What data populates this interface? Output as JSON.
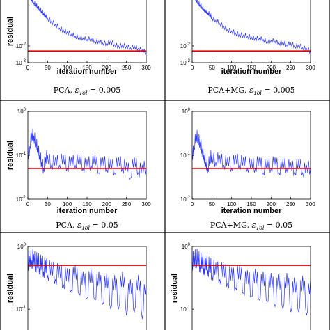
{
  "colors": {
    "series": "#2a35ff",
    "tolerance": "#e00000",
    "axis": "#000000",
    "background": "#ffffff",
    "divider": "#000000"
  },
  "chart_data": [
    {
      "panel": "top-left",
      "type": "line",
      "title": "",
      "xlabel": "iteration number",
      "ylabel": "residual",
      "xlim": [
        0,
        300
      ],
      "ylim": [
        0.001,
        10
      ],
      "yscale": "log",
      "xticks": [
        "0",
        "50",
        "100",
        "150",
        "200",
        "250",
        "300"
      ],
      "yticks": [
        {
          "value": 10,
          "base": "10",
          "exp": "1"
        },
        {
          "value": 0.01,
          "base": "10",
          "exp": "-2"
        },
        {
          "value": 0.001,
          "base": "10",
          "exp": "-3"
        }
      ],
      "tolerance": 0.005,
      "series": [
        {
          "x": [
            0,
            5,
            10,
            15,
            20,
            25,
            30,
            35,
            40,
            45,
            50,
            60,
            70,
            80,
            90,
            100,
            110,
            120,
            130,
            140,
            150,
            160,
            170,
            180,
            190,
            200,
            210,
            220,
            230,
            240,
            250,
            260,
            270,
            280,
            290,
            300
          ],
          "values": [
            15,
            10,
            6,
            4,
            3,
            2.2,
            1.6,
            1.2,
            0.9,
            0.7,
            0.45,
            0.3,
            0.2,
            0.12,
            0.09,
            0.07,
            0.05,
            0.04,
            0.035,
            0.03,
            0.025,
            0.03,
            0.02,
            0.02,
            0.015,
            0.015,
            0.02,
            0.012,
            0.01,
            0.012,
            0.01,
            0.008,
            0.01,
            0.007,
            0.006,
            0.004
          ]
        }
      ]
    },
    {
      "panel": "top-right",
      "type": "line",
      "title": "",
      "xlabel": "iteration number",
      "ylabel": "",
      "xlim": [
        0,
        300
      ],
      "ylim": [
        0.001,
        10
      ],
      "yscale": "log",
      "xticks": [
        "0",
        "50",
        "100",
        "150",
        "200",
        "250",
        "300"
      ],
      "yticks": [
        {
          "value": 10,
          "base": "10",
          "exp": "1"
        },
        {
          "value": 0.01,
          "base": "10",
          "exp": "-2"
        },
        {
          "value": 0.001,
          "base": "10",
          "exp": "-3"
        }
      ],
      "tolerance": 0.005,
      "series": [
        {
          "x": [
            0,
            5,
            10,
            15,
            20,
            25,
            30,
            35,
            40,
            45,
            50,
            60,
            70,
            80,
            90,
            100,
            110,
            120,
            130,
            140,
            150,
            160,
            170,
            180,
            190,
            200,
            210,
            220,
            230,
            240,
            250,
            260,
            270,
            280,
            290,
            300
          ],
          "values": [
            15,
            10,
            6,
            4,
            3,
            2.2,
            1.6,
            1.3,
            1.0,
            0.8,
            0.5,
            0.35,
            0.22,
            0.15,
            0.1,
            0.08,
            0.06,
            0.05,
            0.045,
            0.04,
            0.035,
            0.03,
            0.03,
            0.025,
            0.02,
            0.022,
            0.02,
            0.015,
            0.018,
            0.012,
            0.015,
            0.01,
            0.012,
            0.008,
            0.007,
            0.005
          ]
        }
      ]
    },
    {
      "panel": "middle-left",
      "type": "line",
      "title": "PCA, ε_Tol = 0.005",
      "xlabel": "iteration number",
      "ylabel": "residual",
      "xlim": [
        0,
        300
      ],
      "ylim": [
        0.01,
        1
      ],
      "yscale": "log",
      "xticks": [
        "0",
        "50",
        "100",
        "150",
        "200",
        "250",
        "300"
      ],
      "yticks": [
        {
          "value": 1,
          "base": "10",
          "exp": "0"
        },
        {
          "value": 0.1,
          "base": "10",
          "exp": "-1"
        },
        {
          "value": 0.01,
          "base": "10",
          "exp": "-2"
        }
      ],
      "tolerance": 0.05,
      "series": [
        {
          "x": [
            0,
            5,
            10,
            15,
            20,
            25,
            30,
            35,
            40,
            45,
            50,
            60,
            70,
            80,
            90,
            100,
            110,
            120,
            130,
            140,
            150,
            160,
            170,
            180,
            190,
            200,
            210,
            220,
            230,
            240,
            250,
            260,
            270,
            280,
            290,
            300
          ],
          "values": [
            0.1,
            0.16,
            0.32,
            0.28,
            0.2,
            0.15,
            0.1,
            0.07,
            0.05,
            0.09,
            0.1,
            0.06,
            0.09,
            0.06,
            0.1,
            0.05,
            0.09,
            0.06,
            0.1,
            0.05,
            0.08,
            0.06,
            0.1,
            0.04,
            0.09,
            0.05,
            0.08,
            0.04,
            0.09,
            0.05,
            0.07,
            0.03,
            0.09,
            0.04,
            0.06,
            0.05
          ]
        }
      ]
    },
    {
      "panel": "middle-right",
      "type": "line",
      "title": "PCA+MG, ε_Tol = 0.005",
      "xlabel": "iteration number",
      "ylabel": "",
      "xlim": [
        0,
        300
      ],
      "ylim": [
        0.01,
        1
      ],
      "yscale": "log",
      "xticks": [
        "0",
        "50",
        "100",
        "150",
        "200",
        "250",
        "300"
      ],
      "yticks": [
        {
          "value": 1,
          "base": "10",
          "exp": "0"
        },
        {
          "value": 0.1,
          "base": "10",
          "exp": "-1"
        },
        {
          "value": 0.01,
          "base": "10",
          "exp": "-2"
        }
      ],
      "tolerance": 0.05,
      "series": [
        {
          "x": [
            0,
            5,
            10,
            15,
            20,
            25,
            30,
            35,
            40,
            45,
            50,
            60,
            70,
            80,
            90,
            100,
            110,
            120,
            130,
            140,
            150,
            160,
            170,
            180,
            190,
            200,
            210,
            220,
            230,
            240,
            250,
            260,
            270,
            280,
            290,
            300
          ],
          "values": [
            0.1,
            0.15,
            0.3,
            0.26,
            0.2,
            0.14,
            0.1,
            0.07,
            0.05,
            0.09,
            0.1,
            0.07,
            0.1,
            0.06,
            0.09,
            0.05,
            0.1,
            0.06,
            0.09,
            0.05,
            0.08,
            0.05,
            0.09,
            0.04,
            0.08,
            0.05,
            0.09,
            0.04,
            0.08,
            0.05,
            0.07,
            0.04,
            0.08,
            0.04,
            0.06,
            0.05
          ]
        }
      ]
    },
    {
      "panel": "bottom-left",
      "type": "line",
      "title": "PCA, ε_Tol = 0.05",
      "xlabel": "",
      "ylabel": "residual",
      "xlim": [
        0,
        300
      ],
      "ylim": [
        0.04,
        1
      ],
      "yscale": "log",
      "xticks": [],
      "yticks": [
        {
          "value": 1,
          "base": "10",
          "exp": "0"
        },
        {
          "value": 0.1,
          "base": "10",
          "exp": "-1"
        }
      ],
      "tolerance": 0.5,
      "series": [
        {
          "x": [
            0,
            5,
            10,
            15,
            20,
            25,
            30,
            35,
            40,
            45,
            50,
            60,
            70,
            80,
            90,
            100,
            110,
            120,
            130,
            140,
            150,
            160,
            170,
            180,
            190,
            200,
            210,
            220,
            230,
            240,
            250,
            260,
            270,
            280,
            290,
            300
          ],
          "values": [
            0.55,
            0.7,
            0.6,
            0.75,
            0.5,
            0.7,
            0.45,
            0.65,
            0.4,
            0.6,
            0.35,
            0.55,
            0.3,
            0.5,
            0.25,
            0.45,
            0.2,
            0.5,
            0.18,
            0.4,
            0.15,
            0.45,
            0.14,
            0.4,
            0.12,
            0.38,
            0.1,
            0.35,
            0.1,
            0.4,
            0.08,
            0.3,
            0.09,
            0.35,
            0.07,
            0.3
          ]
        }
      ]
    },
    {
      "panel": "bottom-right",
      "type": "line",
      "title": "PCA+MG, ε_Tol = 0.05",
      "xlabel": "",
      "ylabel": "residual",
      "xlim": [
        0,
        300
      ],
      "ylim": [
        0.04,
        1
      ],
      "yscale": "log",
      "xticks": [],
      "yticks": [
        {
          "value": 1,
          "base": "10",
          "exp": "0"
        },
        {
          "value": 0.1,
          "base": "10",
          "exp": "-1"
        }
      ],
      "tolerance": 0.5,
      "series": [
        {
          "x": [
            0,
            5,
            10,
            15,
            20,
            25,
            30,
            35,
            40,
            45,
            50,
            60,
            70,
            80,
            90,
            100,
            110,
            120,
            130,
            140,
            150,
            160,
            170,
            180,
            190,
            200,
            210,
            220,
            230,
            240,
            250,
            260,
            270,
            280,
            290,
            300
          ],
          "values": [
            0.55,
            0.72,
            0.62,
            0.75,
            0.5,
            0.68,
            0.45,
            0.65,
            0.42,
            0.6,
            0.36,
            0.55,
            0.3,
            0.52,
            0.26,
            0.46,
            0.22,
            0.5,
            0.18,
            0.42,
            0.16,
            0.44,
            0.14,
            0.4,
            0.13,
            0.38,
            0.11,
            0.36,
            0.1,
            0.38,
            0.09,
            0.32,
            0.09,
            0.34,
            0.08,
            0.3
          ]
        }
      ]
    }
  ]
}
